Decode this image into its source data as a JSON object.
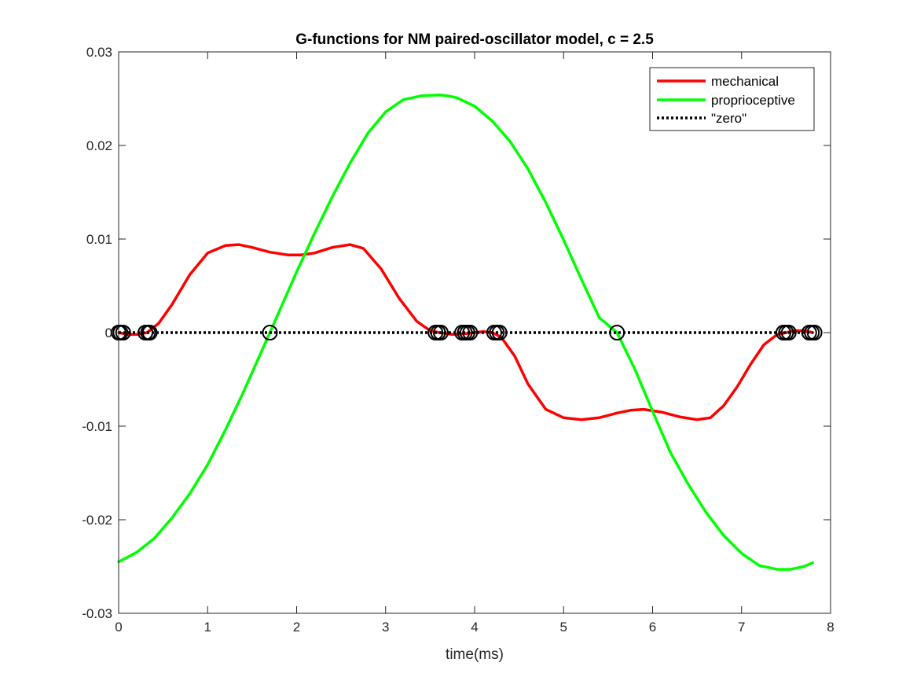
{
  "chart_data": {
    "type": "line",
    "title": "G-functions for NM paired-oscillator model, c = 2.5",
    "xlabel": "time(ms)",
    "ylabel": "",
    "xlim": [
      0,
      8
    ],
    "ylim": [
      -0.03,
      0.03
    ],
    "xticks": [
      0,
      1,
      2,
      3,
      4,
      5,
      6,
      7,
      8
    ],
    "xtick_labels": [
      "0",
      "1",
      "2",
      "3",
      "4",
      "5",
      "6",
      "7",
      "8"
    ],
    "yticks": [
      -0.03,
      -0.02,
      -0.01,
      0,
      0.01,
      0.02,
      0.03
    ],
    "ytick_labels": [
      "-0.03",
      "-0.02",
      "-0.01",
      "0",
      "0.01",
      "0.02",
      "0.03"
    ],
    "grid": false,
    "legend_position": "top-right",
    "series": [
      {
        "name": "mechanical",
        "color": "#ff0000",
        "style": "solid",
        "x": [
          0,
          0.1,
          0.2,
          0.32,
          0.45,
          0.6,
          0.8,
          1.0,
          1.2,
          1.35,
          1.5,
          1.7,
          1.9,
          2.05,
          2.2,
          2.4,
          2.6,
          2.75,
          2.95,
          3.15,
          3.35,
          3.5,
          3.6,
          3.75,
          3.9,
          4.0,
          4.1,
          4.2,
          4.3,
          4.45,
          4.6,
          4.8,
          5.0,
          5.2,
          5.4,
          5.6,
          5.75,
          5.9,
          6.1,
          6.3,
          6.5,
          6.65,
          6.8,
          6.95,
          7.1,
          7.25,
          7.4,
          7.5,
          7.6,
          7.7,
          7.8
        ],
        "y": [
          0,
          -0.0002,
          -0.0002,
          0,
          0.001,
          0.003,
          0.0062,
          0.0085,
          0.0093,
          0.0094,
          0.0091,
          0.0086,
          0.0083,
          0.0083,
          0.0085,
          0.0091,
          0.0094,
          0.009,
          0.0068,
          0.0037,
          0.0012,
          0.0002,
          0,
          -0.0002,
          -0.0001,
          0,
          0.0001,
          0,
          -0.0005,
          -0.0025,
          -0.0055,
          -0.0082,
          -0.0091,
          -0.0093,
          -0.0091,
          -0.0086,
          -0.0083,
          -0.0082,
          -0.0085,
          -0.009,
          -0.0093,
          -0.0091,
          -0.0078,
          -0.0058,
          -0.0034,
          -0.0013,
          -0.0002,
          0,
          0.0002,
          0.0002,
          0
        ]
      },
      {
        "name": "proprioceptive",
        "color": "#00ff00",
        "style": "solid",
        "x": [
          0,
          0.2,
          0.4,
          0.6,
          0.8,
          1.0,
          1.2,
          1.4,
          1.7,
          2.0,
          2.2,
          2.4,
          2.6,
          2.8,
          3.0,
          3.2,
          3.4,
          3.6,
          3.7,
          3.8,
          4.0,
          4.2,
          4.4,
          4.6,
          4.8,
          5.0,
          5.2,
          5.4,
          5.6,
          5.8,
          6.0,
          6.2,
          6.4,
          6.6,
          6.8,
          7.0,
          7.2,
          7.4,
          7.55,
          7.7,
          7.8
        ],
        "y": [
          -0.0245,
          -0.0235,
          -0.022,
          -0.0198,
          -0.0172,
          -0.0141,
          -0.0104,
          -0.0064,
          0,
          0.0065,
          0.0106,
          0.0145,
          0.0181,
          0.0213,
          0.0236,
          0.0249,
          0.0253,
          0.0254,
          0.0253,
          0.0251,
          0.0242,
          0.0226,
          0.0204,
          0.0175,
          0.0139,
          0.0099,
          0.0057,
          0.0016,
          0,
          -0.0039,
          -0.0084,
          -0.0128,
          -0.0162,
          -0.0192,
          -0.0217,
          -0.0236,
          -0.0249,
          -0.0253,
          -0.0253,
          -0.025,
          -0.0246
        ]
      },
      {
        "name": "\"zero\"",
        "color": "#000000",
        "style": "dotted",
        "x": [
          0,
          7.8
        ],
        "y": [
          0,
          0
        ]
      }
    ],
    "markers": {
      "type": "circle",
      "color": "#000000",
      "y": 0,
      "x": [
        0,
        0.02,
        0.05,
        0.3,
        0.33,
        0.35,
        1.7,
        3.56,
        3.59,
        3.62,
        3.86,
        3.89,
        3.92,
        3.95,
        4.22,
        4.25,
        4.28,
        5.6,
        7.47,
        7.5,
        7.53,
        7.76,
        7.79,
        7.82
      ]
    }
  }
}
